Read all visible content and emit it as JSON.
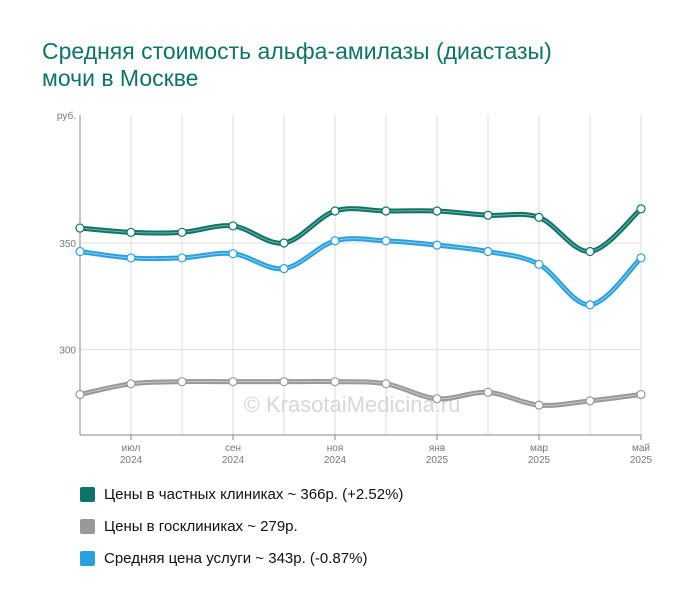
{
  "title_line1": "Средняя стоимость альфа-амилазы (диастазы)",
  "title_line2": "мочи в Москве",
  "watermark": "© KrasotaiMedicina.ru",
  "colors": {
    "private": "#0e7468",
    "public": "#999999",
    "average": "#2aa1dd",
    "title": "#0e7468"
  },
  "legend": [
    {
      "label": "Цены в частных клиниках ~ 366р. (+2.52%)",
      "color": "#0e7468"
    },
    {
      "label": "Цены в госклиниках ~ 279р.",
      "color": "#999999"
    },
    {
      "label": "Средняя цена услуги ~ 343р. (-0.87%)",
      "color": "#2aa1dd"
    }
  ],
  "chart_data": {
    "type": "line",
    "ylabel": "руб.",
    "ylim": [
      260,
      410
    ],
    "yticks": [
      300,
      350
    ],
    "xlabels": [
      {
        "index": 1,
        "month": "июл",
        "year": "2024"
      },
      {
        "index": 3,
        "month": "сен",
        "year": "2024"
      },
      {
        "index": 5,
        "month": "ноя",
        "year": "2024"
      },
      {
        "index": 7,
        "month": "янв",
        "year": "2025"
      },
      {
        "index": 9,
        "month": "мар",
        "year": "2025"
      },
      {
        "index": 11,
        "month": "май",
        "year": "2025"
      }
    ],
    "grid": true,
    "legend_position": "bottom",
    "series": [
      {
        "key": "private",
        "values": [
          357,
          355,
          355,
          358,
          350,
          365,
          365,
          365,
          363,
          362,
          346,
          366
        ]
      },
      {
        "key": "average",
        "values": [
          346,
          343,
          343,
          345,
          338,
          351,
          351,
          349,
          346,
          340,
          321,
          343
        ]
      },
      {
        "key": "public",
        "values": [
          279,
          284,
          285,
          285,
          285,
          285,
          284,
          277,
          280,
          274,
          276,
          279
        ]
      }
    ]
  }
}
